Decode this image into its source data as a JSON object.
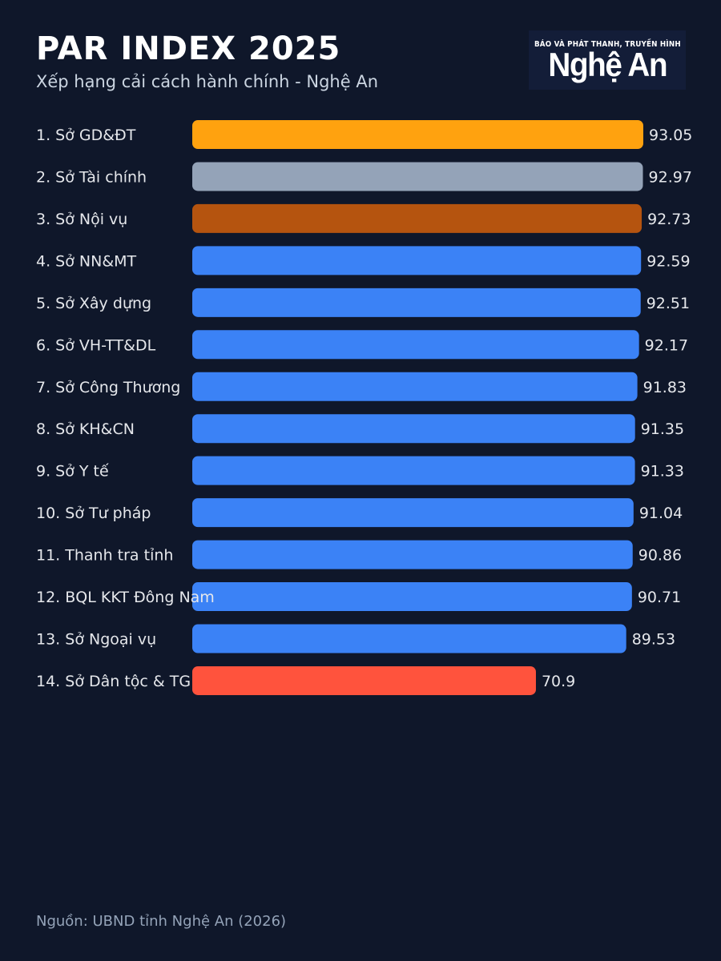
{
  "header": {
    "title": "PAR INDEX 2025",
    "subtitle": "Xếp hạng cải cách hành chính - Nghệ An"
  },
  "logo": {
    "top_text": "BÁO VÀ PHÁT THANH, TRUYỀN HÌNH",
    "main_text": "Nghệ An"
  },
  "chart_data": {
    "type": "bar",
    "orientation": "horizontal",
    "title": "PAR INDEX 2025",
    "subtitle": "Xếp hạng cải cách hành chính - Nghệ An",
    "xlabel": "",
    "ylabel": "",
    "xlim": [
      0,
      93.05
    ],
    "grid": false,
    "legend": "none",
    "categories": [
      "1. Sở GD&ĐT",
      "2. Sở Tài chính",
      "3. Sở Nội vụ",
      "4. Sở NN&MT",
      "5. Sở Xây dựng",
      "6. Sở VH-TT&DL",
      "7. Sở Công Thương",
      "8. Sở KH&CN",
      "9. Sở Y tế",
      "10. Sở Tư pháp",
      "11. Thanh tra tỉnh",
      "12. BQL KKT Đông Nam",
      "13. Sở Ngoại vụ",
      "14. Sở Dân tộc & TG"
    ],
    "values": [
      93.05,
      92.97,
      92.73,
      92.59,
      92.51,
      92.17,
      91.83,
      91.35,
      91.33,
      91.04,
      90.86,
      90.71,
      89.53,
      70.9
    ],
    "value_labels": [
      "93.05",
      "92.97",
      "92.73",
      "92.59",
      "92.51",
      "92.17",
      "91.83",
      "91.35",
      "91.33",
      "91.04",
      "90.86",
      "90.71",
      "89.53",
      "70.9"
    ],
    "colors": [
      "#ffa20f",
      "#94a3b8",
      "#b5540f",
      "#3b82f6",
      "#3b82f6",
      "#3b82f6",
      "#3b82f6",
      "#3b82f6",
      "#3b82f6",
      "#3b82f6",
      "#3b82f6",
      "#3b82f6",
      "#3b82f6",
      "#ff533d"
    ],
    "label_color": "#e5e7eb",
    "value_color": "#e5e7eb"
  },
  "footer": {
    "source": "Nguồn: UBND tỉnh Nghệ An (2026)"
  }
}
